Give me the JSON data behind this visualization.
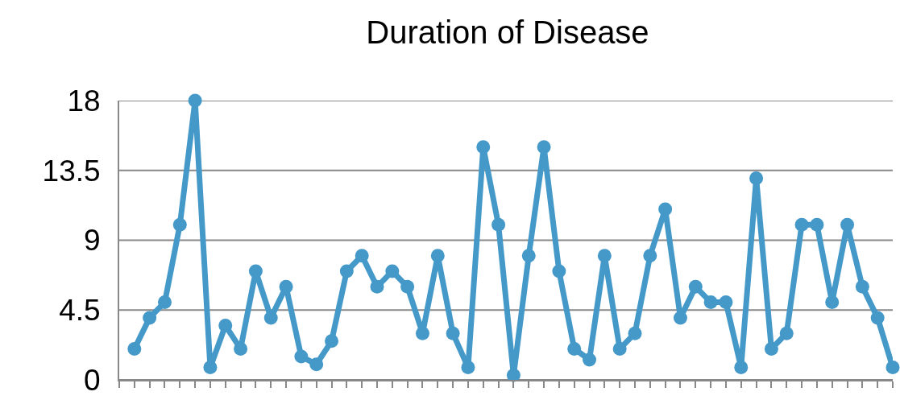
{
  "chart_data": {
    "type": "line",
    "title": "Duration of Disease",
    "categories": [
      null,
      null,
      null,
      null,
      null,
      null,
      null,
      null,
      null,
      null,
      null,
      null,
      null,
      null,
      null,
      null,
      null,
      null,
      null,
      null,
      null,
      null,
      null,
      null,
      null,
      null,
      null,
      null,
      null,
      null,
      null,
      null,
      null,
      null,
      null,
      null,
      null,
      null,
      null,
      null,
      null,
      null,
      null,
      null,
      null,
      null,
      null,
      null,
      null,
      null,
      null
    ],
    "series": [
      {
        "color": "#4599c9",
        "values": [
          2,
          4,
          5,
          10,
          18,
          0.8,
          3.5,
          2,
          7,
          4,
          6,
          1.5,
          1,
          2.5,
          7,
          8,
          6,
          7,
          6,
          3,
          8,
          3,
          0.8,
          15,
          10,
          0.3,
          8,
          15,
          7,
          2,
          1.3,
          8,
          2,
          3,
          8,
          11,
          4,
          6,
          5,
          5,
          0.8,
          13,
          2,
          3,
          10,
          10,
          5,
          10,
          6,
          4,
          0.8
        ]
      }
    ],
    "ylim": [
      0,
      18
    ],
    "yticks": [
      0,
      4.5,
      9,
      13.5,
      18
    ],
    "grid": "y",
    "tick_labels": "y",
    "marker": "circle",
    "line_style": "solid"
  }
}
